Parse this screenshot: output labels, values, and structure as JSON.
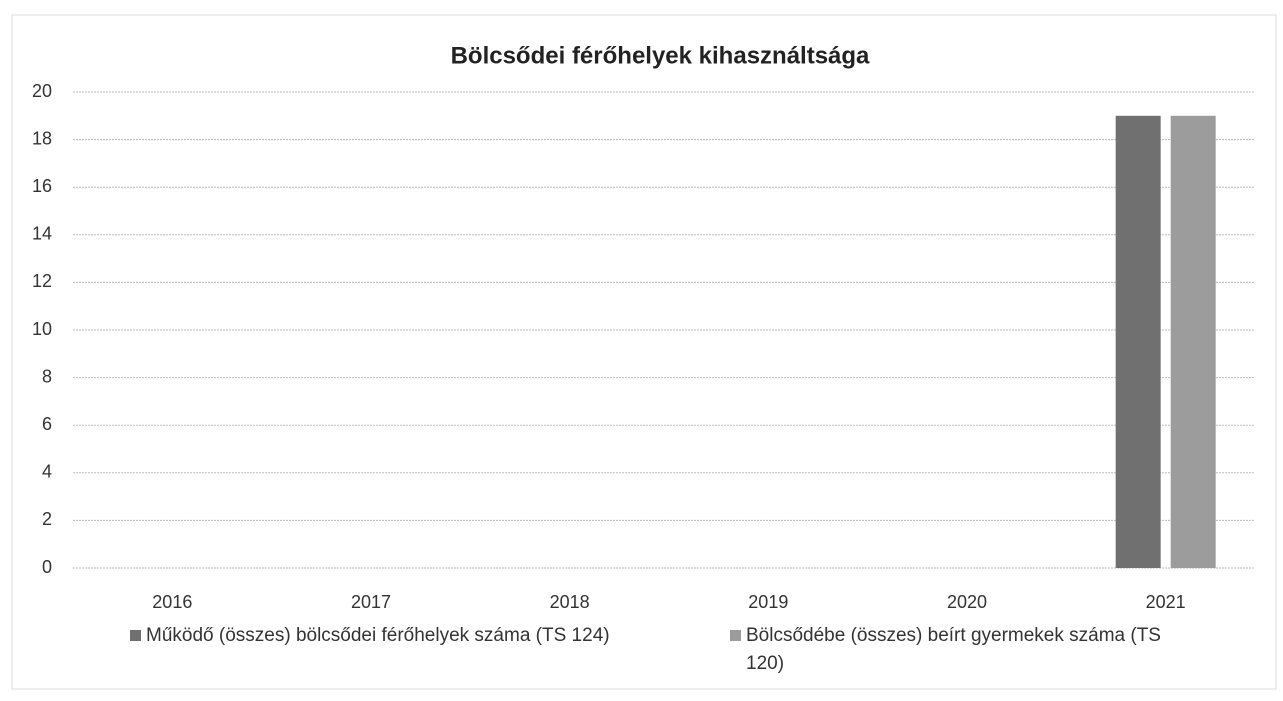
{
  "chart_data": {
    "type": "bar",
    "title": "Bölcsődei férőhelyek kihasználtsága",
    "categories": [
      "2016",
      "2017",
      "2018",
      "2019",
      "2020",
      "2021"
    ],
    "series": [
      {
        "name": "Működő (összes) bölcsődei férőhelyek száma (TS 124)",
        "color": "#707070",
        "values": [
          0,
          0,
          0,
          0,
          0,
          19
        ]
      },
      {
        "name": "Bölcsődébe (összes) beírt gyermekek száma (TS 120)",
        "color": "#9c9c9c",
        "values": [
          0,
          0,
          0,
          0,
          0,
          19
        ]
      }
    ],
    "ylim": [
      0,
      20
    ],
    "yticks": [
      0,
      2,
      4,
      6,
      8,
      10,
      12,
      14,
      16,
      18,
      20
    ],
    "grid": true,
    "legend": "bottom"
  }
}
